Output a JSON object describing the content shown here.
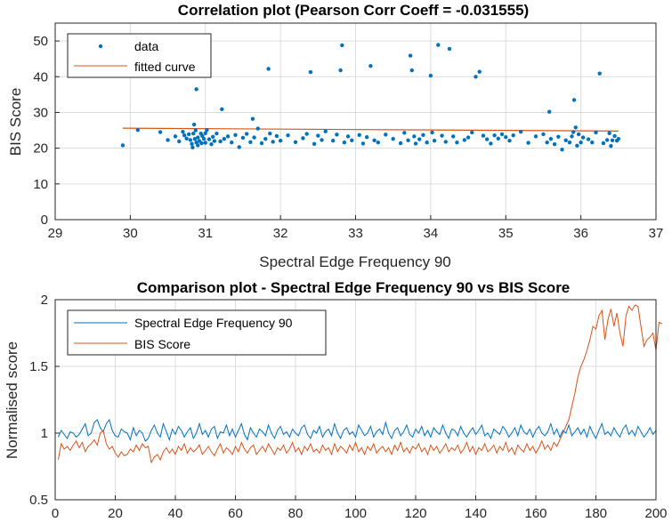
{
  "chart_data": [
    {
      "type": "scatter",
      "title": "Correlation plot (Pearson Corr Coeff = -0.031555)",
      "xlabel": "Spectral Edge Frequency 90",
      "ylabel": "BIS Score",
      "xlim": [
        29,
        37
      ],
      "ylim": [
        0,
        55
      ],
      "xticks": [
        29,
        30,
        31,
        32,
        33,
        34,
        35,
        36,
        37
      ],
      "yticks": [
        0,
        10,
        20,
        30,
        40,
        50
      ],
      "grid": true,
      "legend_position": "top-left",
      "legend": [
        "data",
        "fitted curve"
      ],
      "series": [
        {
          "name": "data",
          "color": "#0072BD",
          "points": [
            [
              29.9,
              20.8
            ],
            [
              30.1,
              25.1
            ],
            [
              30.4,
              24.5
            ],
            [
              30.5,
              22.3
            ],
            [
              30.6,
              23.3
            ],
            [
              30.65,
              21.9
            ],
            [
              30.7,
              24.6
            ],
            [
              30.72,
              23.6
            ],
            [
              30.75,
              22.7
            ],
            [
              30.78,
              23.9
            ],
            [
              30.8,
              22.3
            ],
            [
              30.82,
              21.2
            ],
            [
              30.83,
              20.2
            ],
            [
              30.84,
              24.1
            ],
            [
              30.85,
              26.6
            ],
            [
              30.86,
              22.6
            ],
            [
              30.87,
              25.0
            ],
            [
              30.88,
              36.5
            ],
            [
              30.88,
              21.6
            ],
            [
              30.9,
              23.0
            ],
            [
              30.9,
              20.8
            ],
            [
              30.92,
              22.0
            ],
            [
              30.94,
              24.1
            ],
            [
              30.95,
              21.4
            ],
            [
              30.96,
              23.4
            ],
            [
              30.98,
              22.6
            ],
            [
              31.0,
              21.5
            ],
            [
              31.0,
              24.2
            ],
            [
              31.02,
              25.1
            ],
            [
              31.05,
              22.5
            ],
            [
              31.08,
              21.1
            ],
            [
              31.1,
              23.2
            ],
            [
              31.12,
              22.0
            ],
            [
              31.15,
              24.1
            ],
            [
              31.2,
              21.9
            ],
            [
              31.22,
              30.9
            ],
            [
              31.25,
              22.6
            ],
            [
              31.3,
              23.3
            ],
            [
              31.35,
              21.6
            ],
            [
              31.4,
              23.7
            ],
            [
              31.45,
              20.3
            ],
            [
              31.5,
              22.9
            ],
            [
              31.55,
              24.0
            ],
            [
              31.6,
              21.7
            ],
            [
              31.63,
              28.2
            ],
            [
              31.65,
              23.0
            ],
            [
              31.7,
              25.5
            ],
            [
              31.75,
              21.4
            ],
            [
              31.8,
              22.6
            ],
            [
              31.84,
              42.2
            ],
            [
              31.86,
              24.1
            ],
            [
              31.9,
              21.8
            ],
            [
              31.95,
              23.4
            ],
            [
              32.0,
              22.1
            ],
            [
              32.1,
              23.6
            ],
            [
              32.2,
              21.7
            ],
            [
              32.3,
              22.8
            ],
            [
              32.35,
              24.0
            ],
            [
              32.4,
              41.3
            ],
            [
              32.45,
              21.2
            ],
            [
              32.5,
              23.5
            ],
            [
              32.55,
              22.3
            ],
            [
              32.6,
              24.7
            ],
            [
              32.7,
              22.1
            ],
            [
              32.75,
              23.8
            ],
            [
              32.8,
              41.8
            ],
            [
              32.82,
              48.8
            ],
            [
              32.85,
              21.6
            ],
            [
              32.9,
              23.3
            ],
            [
              32.95,
              22.2
            ],
            [
              33.05,
              23.7
            ],
            [
              33.1,
              21.3
            ],
            [
              33.15,
              23.1
            ],
            [
              33.2,
              43.0
            ],
            [
              33.25,
              22.2
            ],
            [
              33.3,
              21.6
            ],
            [
              33.4,
              23.8
            ],
            [
              33.5,
              22.6
            ],
            [
              33.6,
              21.4
            ],
            [
              33.65,
              24.3
            ],
            [
              33.7,
              22.2
            ],
            [
              33.73,
              45.9
            ],
            [
              33.75,
              41.8
            ],
            [
              33.78,
              23.3
            ],
            [
              33.8,
              21.3
            ],
            [
              33.85,
              22.5
            ],
            [
              33.9,
              23.7
            ],
            [
              33.95,
              21.6
            ],
            [
              34.0,
              40.3
            ],
            [
              34.02,
              24.4
            ],
            [
              34.05,
              22.1
            ],
            [
              34.1,
              48.9
            ],
            [
              34.15,
              23.5
            ],
            [
              34.2,
              21.8
            ],
            [
              34.25,
              47.8
            ],
            [
              34.3,
              23.3
            ],
            [
              34.35,
              21.6
            ],
            [
              34.45,
              22.3
            ],
            [
              34.5,
              23.0
            ],
            [
              34.55,
              24.4
            ],
            [
              34.6,
              40.0
            ],
            [
              34.65,
              41.4
            ],
            [
              34.7,
              23.5
            ],
            [
              34.75,
              22.5
            ],
            [
              34.8,
              21.3
            ],
            [
              34.85,
              23.6
            ],
            [
              34.9,
              22.7
            ],
            [
              34.95,
              23.9
            ],
            [
              35.0,
              23.1
            ],
            [
              35.05,
              22.1
            ],
            [
              35.1,
              23.6
            ],
            [
              35.2,
              24.6
            ],
            [
              35.3,
              21.5
            ],
            [
              35.4,
              23.3
            ],
            [
              35.5,
              23.9
            ],
            [
              35.55,
              21.6
            ],
            [
              35.58,
              30.2
            ],
            [
              35.6,
              22.6
            ],
            [
              35.65,
              21.1
            ],
            [
              35.7,
              23.2
            ],
            [
              35.75,
              19.6
            ],
            [
              35.8,
              22.2
            ],
            [
              35.85,
              21.6
            ],
            [
              35.88,
              23.3
            ],
            [
              35.9,
              24.5
            ],
            [
              35.91,
              33.5
            ],
            [
              35.93,
              25.8
            ],
            [
              35.95,
              20.7
            ],
            [
              35.97,
              23.9
            ],
            [
              36.0,
              21.6
            ],
            [
              36.03,
              23.0
            ],
            [
              36.1,
              22.5
            ],
            [
              36.15,
              21.6
            ],
            [
              36.2,
              24.4
            ],
            [
              36.25,
              40.9
            ],
            [
              36.3,
              21.4
            ],
            [
              36.35,
              22.3
            ],
            [
              36.38,
              24.2
            ],
            [
              36.4,
              20.6
            ],
            [
              36.42,
              22.2
            ],
            [
              36.45,
              23.4
            ],
            [
              36.48,
              22.1
            ],
            [
              36.5,
              22.6
            ]
          ]
        },
        {
          "name": "fitted curve",
          "color": "#D95319",
          "x": [
            29.9,
            36.5
          ],
          "y": [
            25.6,
            24.8
          ]
        }
      ]
    },
    {
      "type": "line",
      "title": "Comparison plot - Spectral Edge Frequency 90 vs BIS Score",
      "xlabel": "",
      "ylabel": "Normalised score",
      "xlim": [
        0,
        200
      ],
      "ylim": [
        0.5,
        2
      ],
      "xticks": [
        0,
        20,
        40,
        60,
        80,
        100,
        120,
        140,
        160,
        180,
        200
      ],
      "yticks": [
        0.5,
        1,
        1.5,
        2
      ],
      "grid": true,
      "legend_position": "top-left",
      "legend": [
        "Spectral Edge Frequency 90",
        "BIS Score"
      ],
      "series": [
        {
          "name": "Spectral Edge Frequency 90",
          "color": "#0072BD",
          "x_start": 1,
          "values": [
            0.97,
            1.02,
            0.99,
            0.96,
            1.01,
            1.0,
            0.97,
            0.99,
            1.03,
            1.07,
            0.98,
            1.0,
            1.08,
            1.1,
            1.04,
            1.01,
            1.07,
            1.1,
            1.02,
            0.98,
            0.97,
            1.03,
            1.01,
            1.0,
            0.95,
            1.04,
            0.98,
            1.02,
            1.0,
            0.94,
            0.96,
            1.02,
            1.06,
            1.0,
            0.97,
            1.07,
            1.01,
            0.95,
            1.03,
            0.99,
            1.05,
            1.02,
            0.97,
            1.01,
            1.04,
            0.96,
            1.0,
            1.07,
            0.99,
            1.02,
            0.97,
            1.03,
            1.05,
            0.96,
            1.01,
            1.0,
            1.06,
            0.98,
            1.03,
            0.97,
            1.02,
            1.07,
            0.99,
            0.95,
            1.04,
            1.0,
            0.97,
            1.03,
            1.01,
            0.98,
            1.06,
            1.0,
            0.96,
            1.02,
            1.05,
            0.99,
            1.01,
            0.97,
            1.03,
            1.0,
            0.98,
            1.04,
            1.06,
            0.99,
            0.96,
            1.02,
            1.0,
            1.05,
            0.97,
            1.01,
            1.03,
            0.98,
            1.07,
            1.0,
            0.96,
            1.02,
            1.04,
            0.99,
            1.01,
            0.97,
            1.06,
            1.02,
            0.98,
            1.0,
            1.05,
            0.97,
            1.01,
            1.03,
            0.99,
            1.08,
            1.0,
            0.96,
            1.02,
            1.04,
            0.98,
            1.01,
            1.06,
            0.99,
            0.97,
            1.03,
            1.0,
            1.05,
            0.98,
            1.02,
            0.97,
            1.04,
            1.01,
            0.99,
            1.06,
            1.0,
            0.96,
            1.03,
            1.02,
            0.98,
            1.05,
            1.0,
            0.97,
            1.01,
            1.04,
            0.99,
            1.02,
            1.06,
            0.98,
            1.0,
            0.96,
            1.03,
            1.01,
            0.99,
            1.05,
            1.02,
            0.97,
            1.0,
            1.04,
            0.98,
            1.06,
            1.01,
            0.99,
            1.03,
            0.97,
            1.02,
            1.05,
            1.0,
            0.98,
            1.01,
            1.07,
            0.99,
            1.03,
            0.97,
            1.02,
            1.0,
            1.06,
            0.98,
            1.01,
            1.04,
            0.99,
            1.03,
            0.97,
            1.05,
            1.0,
            0.96,
            1.02,
            1.07,
            0.99,
            1.01,
            0.98,
            1.04,
            1.0,
            0.97,
            1.03,
            1.06,
            0.99,
            1.02,
            0.98,
            1.05,
            1.01,
            0.97,
            1.0,
            1.04,
            0.99,
            1.02
          ]
        },
        {
          "name": "BIS Score",
          "color": "#D95319",
          "x_start": 1,
          "values": [
            0.8,
            0.92,
            0.88,
            0.9,
            0.87,
            0.91,
            0.94,
            0.89,
            0.93,
            0.86,
            0.9,
            0.92,
            0.95,
            0.91,
            1.0,
            1.02,
            0.92,
            0.88,
            0.9,
            0.85,
            0.82,
            0.86,
            0.83,
            0.84,
            0.88,
            0.86,
            0.91,
            0.87,
            0.92,
            0.89,
            0.9,
            0.78,
            0.82,
            0.84,
            0.8,
            0.86,
            0.89,
            0.85,
            0.88,
            0.84,
            0.9,
            0.87,
            0.92,
            0.85,
            0.89,
            0.86,
            0.88,
            0.91,
            0.84,
            0.87,
            0.9,
            0.86,
            0.83,
            0.88,
            0.92,
            0.85,
            0.89,
            0.87,
            0.84,
            0.9,
            0.86,
            0.93,
            0.88,
            0.85,
            0.89,
            0.91,
            0.84,
            0.87,
            0.9,
            0.86,
            0.92,
            0.88,
            0.84,
            0.89,
            0.87,
            0.91,
            0.85,
            0.88,
            0.93,
            0.86,
            0.89,
            0.84,
            0.9,
            0.87,
            0.92,
            0.86,
            0.88,
            0.85,
            0.91,
            0.87,
            0.89,
            0.84,
            0.92,
            0.86,
            0.9,
            0.88,
            0.85,
            0.91,
            0.87,
            0.93,
            0.86,
            0.89,
            0.84,
            0.9,
            0.87,
            0.92,
            0.85,
            0.88,
            0.9,
            0.86,
            0.89,
            0.84,
            0.91,
            0.87,
            0.93,
            0.86,
            0.89,
            0.85,
            0.9,
            0.88,
            0.92,
            0.86,
            0.89,
            0.84,
            0.91,
            0.87,
            0.9,
            0.85,
            0.88,
            0.92,
            0.86,
            0.89,
            0.87,
            0.91,
            0.85,
            0.88,
            0.93,
            0.86,
            0.9,
            0.84,
            0.89,
            0.87,
            0.92,
            0.86,
            0.88,
            0.91,
            0.85,
            0.9,
            0.87,
            0.93,
            0.86,
            0.89,
            0.84,
            0.91,
            0.88,
            0.86,
            0.92,
            0.87,
            0.9,
            0.85,
            0.89,
            0.94,
            0.88,
            0.91,
            0.87,
            0.93,
            0.9,
            0.95,
            1.0,
            1.05,
            1.1,
            1.2,
            1.3,
            1.42,
            1.5,
            1.55,
            1.62,
            1.7,
            1.8,
            1.78,
            1.88,
            1.92,
            1.7,
            1.85,
            1.93,
            1.8,
            1.9,
            1.75,
            1.65,
            1.88,
            1.95,
            1.92,
            1.96,
            1.95,
            1.8,
            1.65,
            1.7,
            1.72,
            1.75,
            1.62,
            1.83,
            1.82
          ]
        }
      ]
    }
  ]
}
